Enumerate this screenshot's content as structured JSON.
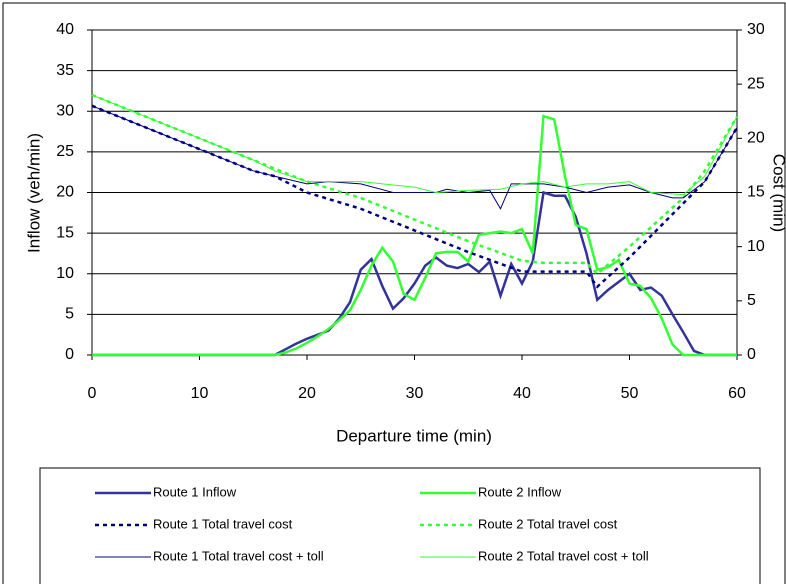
{
  "chart_data": {
    "type": "line",
    "xlabel": "Departure time (min)",
    "ylabel": "Inflow (veh/min)",
    "y2label": "Cost (min)",
    "xlim": [
      0,
      60
    ],
    "xticks": [
      0,
      10,
      20,
      30,
      40,
      50,
      60
    ],
    "ylim": [
      0,
      40
    ],
    "yticks": [
      0,
      5,
      10,
      15,
      20,
      25,
      30,
      35,
      40
    ],
    "y2lim": [
      0,
      30
    ],
    "y2ticks": [
      0,
      5,
      10,
      15,
      20,
      25,
      30
    ],
    "grid": true,
    "legend": "bottom",
    "series": [
      {
        "name": "Route 1 Inflow",
        "color": "#333399",
        "line_style": "solid",
        "line_width": "thick",
        "axis": "y",
        "x": [
          0,
          17,
          18,
          19,
          20,
          21,
          22,
          23,
          24,
          25,
          26,
          27,
          28,
          29,
          30,
          31,
          32,
          33,
          34,
          35,
          36,
          37,
          38,
          39,
          40,
          41,
          42,
          43,
          44,
          45,
          46,
          47,
          48,
          49,
          50,
          51,
          52,
          53,
          54,
          55,
          56,
          57,
          60
        ],
        "values": [
          0,
          0,
          0.7,
          1.4,
          2,
          2.5,
          3,
          4.5,
          6.5,
          10.5,
          11.8,
          8.5,
          5.7,
          7,
          8.8,
          11,
          12,
          11,
          10.7,
          11.2,
          10.2,
          11.5,
          7.3,
          11.2,
          8.8,
          11.5,
          20,
          19.6,
          19.6,
          17,
          12.5,
          6.8,
          8,
          9,
          10,
          8,
          8.3,
          7.3,
          5,
          2.8,
          0.5,
          0,
          0
        ]
      },
      {
        "name": "Route 2 Inflow",
        "color": "#33ff33",
        "line_style": "solid",
        "line_width": "thick",
        "axis": "y",
        "x": [
          0,
          17,
          18,
          19,
          20,
          21,
          22,
          23,
          24,
          25,
          26,
          27,
          28,
          29,
          30,
          31,
          32,
          33,
          34,
          35,
          36,
          37,
          38,
          39,
          40,
          41,
          42,
          43,
          44,
          45,
          46,
          47,
          48,
          49,
          50,
          51,
          52,
          53,
          54,
          55,
          60
        ],
        "values": [
          0,
          0,
          0.3,
          0.8,
          1.5,
          2.3,
          3.2,
          4.3,
          5.5,
          8,
          11,
          13.2,
          11.5,
          7.5,
          6.8,
          9.5,
          12.5,
          12.7,
          12.7,
          11.5,
          14.8,
          15,
          15.2,
          15,
          15.5,
          12.5,
          29.4,
          29,
          22,
          16,
          15.5,
          10.5,
          10.8,
          11.7,
          8.8,
          8.5,
          7,
          4.5,
          1.3,
          0,
          0
        ]
      },
      {
        "name": "Route 1 Total travel cost",
        "color": "#000080",
        "line_style": "dashed",
        "line_width": "thick",
        "axis": "y2",
        "x": [
          0,
          5,
          10,
          15,
          17,
          20,
          25,
          30,
          35,
          40,
          41,
          46,
          47,
          50,
          55,
          57,
          60
        ],
        "values": [
          23,
          21,
          19,
          17,
          16.5,
          15,
          13.5,
          11.5,
          9.5,
          7.7,
          7.7,
          7.7,
          6.3,
          9,
          14,
          16,
          21
        ]
      },
      {
        "name": "Route 2 Total travel cost",
        "color": "#33ff33",
        "line_style": "dashed",
        "line_width": "thick",
        "axis": "y2",
        "x": [
          0,
          5,
          10,
          15,
          20,
          25,
          30,
          35,
          40,
          42,
          46,
          47,
          50,
          55,
          57,
          60
        ],
        "values": [
          24,
          22,
          20,
          18,
          16,
          14.5,
          12.5,
          10.5,
          8.7,
          8.5,
          8.5,
          7.5,
          10,
          14.5,
          17,
          22
        ]
      },
      {
        "name": "Route 1 Total travel cost + toll",
        "color": "#000080",
        "line_style": "solid",
        "line_width": "thin",
        "axis": "y2",
        "x": [
          0,
          5,
          10,
          15,
          17,
          20,
          22,
          25,
          28,
          30,
          32,
          33,
          35,
          37,
          38,
          39,
          40,
          42,
          44,
          46,
          48,
          50,
          52,
          54,
          55,
          57,
          60
        ],
        "values": [
          23,
          21,
          19,
          17,
          16.5,
          15.8,
          16,
          15.8,
          15,
          15,
          15,
          15.3,
          15,
          15.2,
          13.5,
          15.8,
          15.8,
          15.8,
          15.5,
          15,
          15.5,
          15.7,
          15,
          14.5,
          14.5,
          16,
          21
        ]
      },
      {
        "name": "Route 2 Total travel cost + toll",
        "color": "#33ff33",
        "line_style": "solid",
        "line_width": "thin",
        "axis": "y2",
        "x": [
          0,
          5,
          10,
          15,
          17,
          20,
          25,
          30,
          32,
          35,
          38,
          40,
          42,
          44,
          46,
          48,
          50,
          52,
          55,
          57,
          60
        ],
        "values": [
          24,
          22,
          20,
          18,
          17,
          16,
          16,
          15.5,
          15,
          15.2,
          15.3,
          15.8,
          16,
          15.5,
          15.8,
          15.8,
          16,
          15,
          14.8,
          16.5,
          22
        ]
      }
    ]
  }
}
